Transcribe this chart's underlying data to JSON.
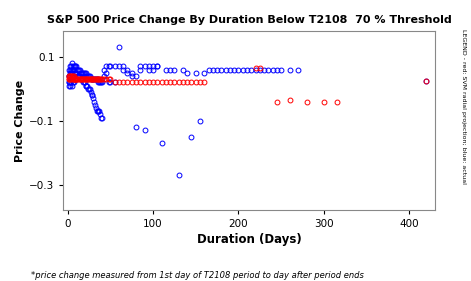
{
  "title": "S&P 500 Price Change By Duration Below T2108  70 % Threshold",
  "xlabel": "Duration (Days)",
  "ylabel": "Price Change",
  "footnote": "*price change measured from 1st day of T2108 period to day after period ends",
  "legend_text": "LEGEND - red: SVM radial projection; blue: actual",
  "xlim": [
    -5,
    430
  ],
  "ylim": [
    -0.38,
    0.18
  ],
  "yticks": [
    -0.3,
    -0.1,
    0.1
  ],
  "xticks": [
    0,
    100,
    200,
    300,
    400
  ],
  "blue_color": "#0000FF",
  "red_color": "#FF0000",
  "bg_color": "#FFFFFF",
  "marker_size": 3.5,
  "marker_lw": 0.7,
  "blue_x": [
    1,
    1,
    2,
    2,
    2,
    2,
    3,
    3,
    3,
    3,
    3,
    3,
    3,
    4,
    4,
    4,
    4,
    4,
    5,
    5,
    5,
    5,
    5,
    6,
    6,
    6,
    6,
    7,
    7,
    7,
    7,
    8,
    8,
    8,
    9,
    9,
    9,
    10,
    10,
    10,
    11,
    11,
    12,
    12,
    13,
    13,
    14,
    14,
    15,
    15,
    16,
    16,
    17,
    17,
    18,
    18,
    19,
    19,
    20,
    20,
    21,
    21,
    22,
    22,
    23,
    23,
    24,
    24,
    25,
    25,
    26,
    26,
    27,
    27,
    28,
    28,
    29,
    29,
    30,
    30,
    31,
    31,
    32,
    32,
    33,
    33,
    34,
    34,
    35,
    35,
    36,
    36,
    37,
    37,
    38,
    38,
    39,
    39,
    40,
    40,
    42,
    42,
    45,
    45,
    48,
    48,
    50,
    50,
    55,
    55,
    60,
    60,
    65,
    65,
    70,
    70,
    75,
    75,
    80,
    80,
    85,
    85,
    90,
    90,
    95,
    95,
    100,
    100,
    105,
    105,
    110,
    115,
    120,
    125,
    130,
    135,
    140,
    145,
    150,
    155,
    160,
    165,
    170,
    175,
    180,
    185,
    190,
    195,
    200,
    205,
    210,
    215,
    220,
    225,
    230,
    235,
    240,
    245,
    250,
    260,
    270,
    420
  ],
  "blue_y": [
    0.04,
    0.02,
    0.06,
    0.04,
    0.02,
    0.01,
    0.07,
    0.06,
    0.05,
    0.04,
    0.03,
    0.02,
    0.01,
    0.07,
    0.06,
    0.05,
    0.03,
    0.02,
    0.08,
    0.06,
    0.05,
    0.03,
    0.01,
    0.07,
    0.06,
    0.04,
    0.02,
    0.07,
    0.06,
    0.04,
    0.02,
    0.07,
    0.05,
    0.03,
    0.07,
    0.05,
    0.03,
    0.07,
    0.05,
    0.03,
    0.06,
    0.04,
    0.06,
    0.04,
    0.06,
    0.04,
    0.06,
    0.04,
    0.05,
    0.03,
    0.05,
    0.03,
    0.05,
    0.03,
    0.05,
    0.02,
    0.05,
    0.02,
    0.05,
    0.02,
    0.05,
    0.01,
    0.04,
    0.01,
    0.04,
    0.01,
    0.04,
    0.0,
    0.04,
    0.0,
    0.04,
    0.0,
    0.03,
    -0.01,
    0.03,
    -0.02,
    0.03,
    -0.02,
    0.03,
    -0.03,
    0.03,
    -0.04,
    0.03,
    -0.05,
    0.03,
    -0.06,
    0.03,
    -0.07,
    0.03,
    -0.07,
    0.02,
    -0.07,
    0.02,
    -0.07,
    0.02,
    -0.08,
    0.02,
    -0.09,
    0.02,
    -0.09,
    0.06,
    0.04,
    0.07,
    0.05,
    0.07,
    0.02,
    0.07,
    0.02,
    0.07,
    0.02,
    0.13,
    0.07,
    0.07,
    0.06,
    0.06,
    0.05,
    0.05,
    0.04,
    -0.12,
    0.04,
    0.07,
    0.06,
    0.07,
    -0.13,
    0.07,
    0.06,
    0.07,
    0.06,
    0.07,
    0.07,
    -0.17,
    0.06,
    0.06,
    0.06,
    -0.27,
    0.06,
    0.05,
    -0.15,
    0.05,
    -0.1,
    0.05,
    0.06,
    0.06,
    0.06,
    0.06,
    0.06,
    0.06,
    0.06,
    0.06,
    0.06,
    0.06,
    0.06,
    0.06,
    0.06,
    0.06,
    0.06,
    0.06,
    0.06,
    0.06,
    0.06,
    0.06,
    0.025
  ],
  "red_x": [
    1,
    1,
    2,
    2,
    3,
    3,
    4,
    4,
    5,
    5,
    6,
    6,
    7,
    7,
    8,
    8,
    9,
    9,
    10,
    10,
    11,
    12,
    13,
    14,
    15,
    16,
    17,
    18,
    19,
    20,
    21,
    22,
    23,
    24,
    25,
    26,
    27,
    28,
    29,
    30,
    31,
    32,
    33,
    34,
    35,
    36,
    37,
    38,
    39,
    40,
    42,
    45,
    48,
    50,
    55,
    60,
    65,
    70,
    75,
    80,
    85,
    90,
    95,
    100,
    105,
    110,
    115,
    120,
    125,
    130,
    135,
    140,
    145,
    150,
    155,
    160,
    220,
    225,
    245,
    260,
    280,
    300,
    315,
    420
  ],
  "red_y": [
    0.04,
    0.03,
    0.04,
    0.03,
    0.04,
    0.03,
    0.04,
    0.03,
    0.04,
    0.03,
    0.04,
    0.03,
    0.04,
    0.03,
    0.03,
    0.03,
    0.03,
    0.03,
    0.03,
    0.03,
    0.03,
    0.03,
    0.03,
    0.03,
    0.03,
    0.03,
    0.03,
    0.03,
    0.03,
    0.03,
    0.03,
    0.03,
    0.03,
    0.03,
    0.03,
    0.03,
    0.03,
    0.03,
    0.03,
    0.03,
    0.03,
    0.03,
    0.03,
    0.03,
    0.03,
    0.03,
    0.03,
    0.03,
    0.03,
    0.03,
    0.03,
    0.03,
    0.03,
    0.03,
    0.02,
    0.02,
    0.02,
    0.02,
    0.02,
    0.02,
    0.02,
    0.02,
    0.02,
    0.02,
    0.02,
    0.02,
    0.02,
    0.02,
    0.02,
    0.02,
    0.02,
    0.02,
    0.02,
    0.02,
    0.02,
    0.02,
    0.065,
    0.065,
    -0.04,
    -0.035,
    -0.04,
    -0.04,
    -0.04,
    0.025
  ]
}
